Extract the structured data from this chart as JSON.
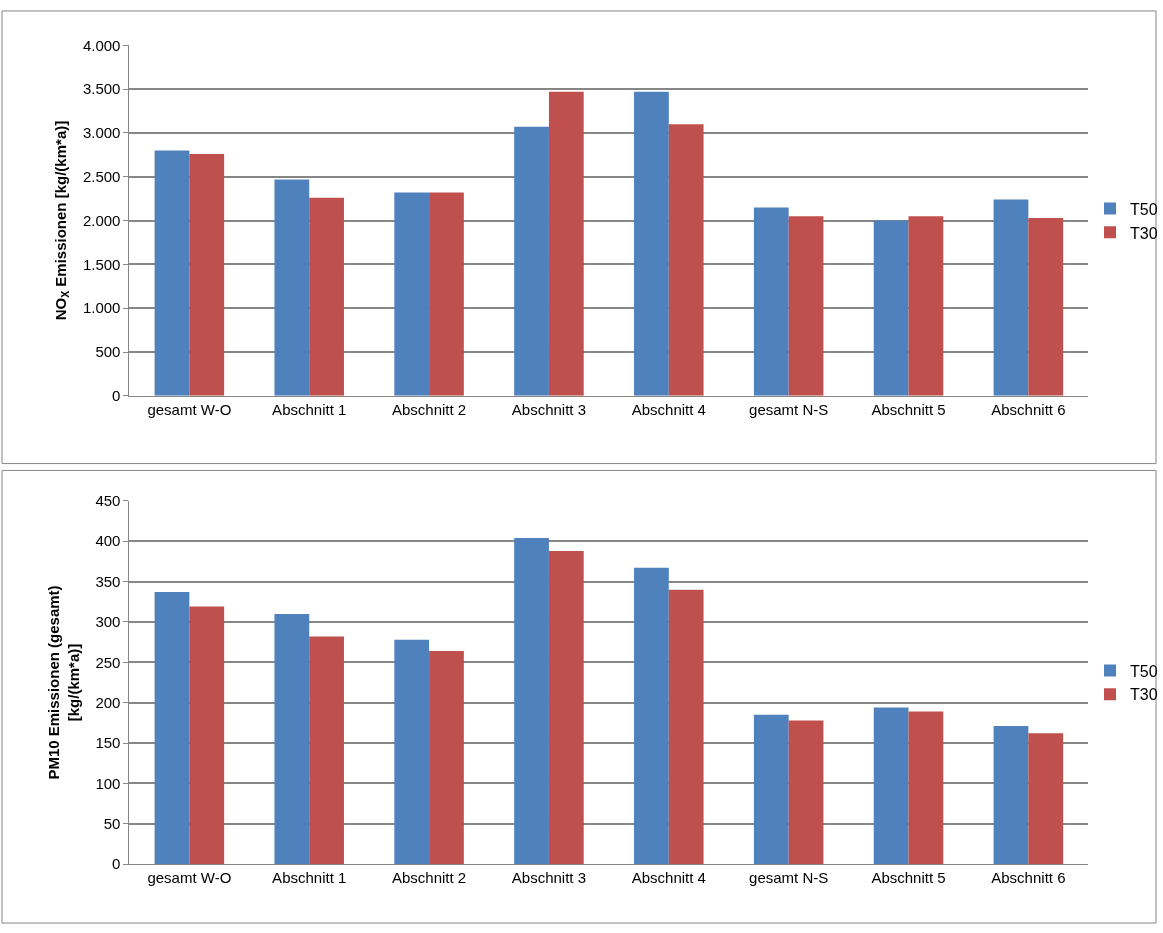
{
  "chart_data": [
    {
      "type": "bar",
      "ylabel": "NO$_{X}$ Emissionen [kg/(km*a)]",
      "categories": [
        "gesamt W-O",
        "Abschnitt 1",
        "Abschnitt 2",
        "Abschnitt 3",
        "Abschnitt 4",
        "gesamt N-S",
        "Abschnitt 5",
        "Abschnitt 6"
      ],
      "series": [
        {
          "name": "T50",
          "color": "#4f81bd",
          "values": [
            2800,
            2470,
            2320,
            3070,
            3470,
            2150,
            2000,
            2240
          ]
        },
        {
          "name": "T30",
          "color": "#c0504d",
          "values": [
            2760,
            2260,
            2320,
            3470,
            3100,
            2050,
            2050,
            2030
          ]
        }
      ],
      "ylim": [
        0,
        4000
      ],
      "yticks": [
        0,
        {
          "value": 500,
          "label": "500"
        },
        {
          "value": 1000,
          "label": "1.000"
        },
        {
          "value": 1500,
          "label": "1.500"
        },
        {
          "value": 2000,
          "label": "2.000"
        },
        {
          "value": 2500,
          "label": "2.500"
        },
        {
          "value": 3000,
          "label": "3.000"
        },
        {
          "value": 3500,
          "label": "3.500"
        },
        {
          "value": 4000,
          "label": "4.000"
        }
      ],
      "grid": "y",
      "legend": "right"
    },
    {
      "type": "bar",
      "ylabel": "PM10 Emissionen (gesamt)\n[kg/(km*a)]",
      "categories": [
        "gesamt W-O",
        "Abschnitt 1",
        "Abschnitt 2",
        "Abschnitt 3",
        "Abschnitt 4",
        "gesamt N-S",
        "Abschnitt 5",
        "Abschnitt 6"
      ],
      "series": [
        {
          "name": "T50",
          "color": "#4f81bd",
          "values": [
            337,
            310,
            278,
            404,
            367,
            185,
            194,
            171
          ]
        },
        {
          "name": "T30",
          "color": "#c0504d",
          "values": [
            319,
            282,
            264,
            388,
            340,
            178,
            189,
            162
          ]
        }
      ],
      "ylim": [
        0,
        450
      ],
      "yticks": [
        0,
        50,
        100,
        150,
        200,
        250,
        300,
        350,
        400,
        450
      ],
      "grid": "y",
      "legend": "right"
    }
  ]
}
